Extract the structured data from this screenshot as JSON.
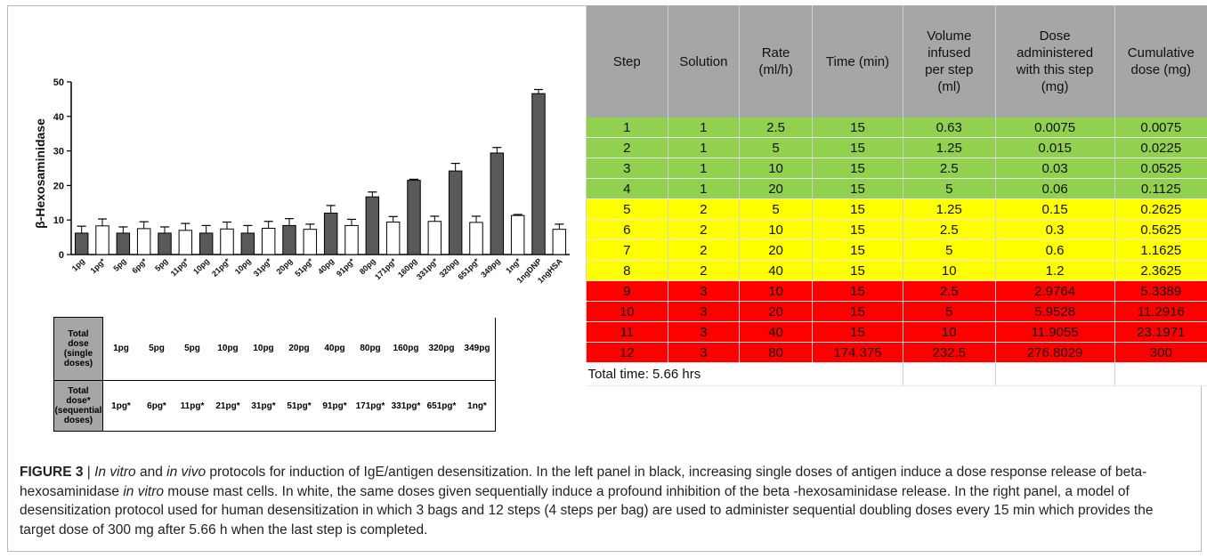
{
  "chart_data": {
    "type": "bar",
    "ylabel": "β-Hexosaminidase",
    "ylim": [
      0,
      50
    ],
    "yticks": [
      0,
      10,
      20,
      30,
      40,
      50
    ],
    "categories": [
      "1pg",
      "1pg*",
      "5pg",
      "6pg*",
      "5pg",
      "11pg*",
      "10pg",
      "21pg*",
      "10pg",
      "31pg*",
      "20pg",
      "51pg*",
      "40pg",
      "91pg*",
      "80pg",
      "171pg*",
      "160pg",
      "331pg*",
      "320pg",
      "651pg*",
      "349pg",
      "1ng*",
      "1ngDNP",
      "1ngHSA"
    ],
    "series": [
      {
        "values": [
          6.2,
          8.3,
          6.2,
          7.5,
          6.2,
          7.0,
          6.2,
          7.4,
          6.2,
          7.6,
          8.4,
          7.3,
          12.0,
          8.4,
          16.7,
          9.4,
          21.5,
          9.6,
          24.2,
          9.3,
          29.4,
          11.3,
          46.6,
          7.3
        ],
        "errors": [
          2.0,
          2.0,
          1.8,
          2.0,
          1.8,
          2.0,
          2.2,
          2.0,
          2.2,
          2.0,
          2.0,
          1.5,
          2.2,
          1.8,
          1.4,
          1.6,
          0.3,
          1.5,
          2.2,
          1.8,
          1.6,
          0.3,
          1.2,
          1.5
        ],
        "fills": [
          "dark",
          "white",
          "dark",
          "white",
          "dark",
          "white",
          "dark",
          "white",
          "dark",
          "white",
          "dark",
          "white",
          "dark",
          "white",
          "dark",
          "white",
          "dark",
          "white",
          "dark",
          "white",
          "dark",
          "white",
          "dark",
          "white"
        ]
      }
    ],
    "colors": {
      "dark": "#595959",
      "white": "#ffffff",
      "stroke": "#000000"
    }
  },
  "dose_table": {
    "row1_header": [
      "Total",
      "dose",
      "(single",
      "doses)"
    ],
    "row1_values": [
      "1pg",
      "5pg",
      "5pg",
      "10pg",
      "10pg",
      "20pg",
      "40pg",
      "80pg",
      "160pg",
      "320pg",
      "349pg"
    ],
    "row2_header": [
      "Total",
      "dose*",
      "(sequential",
      "doses)"
    ],
    "row2_values": [
      "1pg*",
      "6pg*",
      "11pg*",
      "21pg*",
      "31pg*",
      "51pg*",
      "91pg*",
      "171pg*",
      "331pg*",
      "651pg*",
      "1ng*"
    ]
  },
  "protocol_table": {
    "headers": [
      [
        "Step"
      ],
      [
        "Solution"
      ],
      [
        "Rate",
        "(ml/h)"
      ],
      [
        "Time (min)"
      ],
      [
        "Volume",
        "infused",
        "per step",
        "(ml)"
      ],
      [
        "Dose",
        "administered",
        "with this step",
        "(mg)"
      ],
      [
        "Cumulative",
        "dose (mg)"
      ]
    ],
    "rows": [
      {
        "color": "green",
        "cells": [
          "1",
          "1",
          "2.5",
          "15",
          "0.63",
          "0.0075",
          "0.0075"
        ]
      },
      {
        "color": "green",
        "cells": [
          "2",
          "1",
          "5",
          "15",
          "1.25",
          "0.015",
          "0.0225"
        ]
      },
      {
        "color": "green",
        "cells": [
          "3",
          "1",
          "10",
          "15",
          "2.5",
          "0.03",
          "0.0525"
        ]
      },
      {
        "color": "green",
        "cells": [
          "4",
          "1",
          "20",
          "15",
          "5",
          "0.06",
          "0.1125"
        ]
      },
      {
        "color": "yellow",
        "cells": [
          "5",
          "2",
          "5",
          "15",
          "1.25",
          "0.15",
          "0.2625"
        ]
      },
      {
        "color": "yellow",
        "cells": [
          "6",
          "2",
          "10",
          "15",
          "2.5",
          "0.3",
          "0.5625"
        ]
      },
      {
        "color": "yellow",
        "cells": [
          "7",
          "2",
          "20",
          "15",
          "5",
          "0.6",
          "1.1625"
        ]
      },
      {
        "color": "yellow",
        "cells": [
          "8",
          "2",
          "40",
          "15",
          "10",
          "1.2",
          "2.3625"
        ]
      },
      {
        "color": "red",
        "cells": [
          "9",
          "3",
          "10",
          "15",
          "2.5",
          "2.9764",
          "5.3389"
        ]
      },
      {
        "color": "red",
        "cells": [
          "10",
          "3",
          "20",
          "15",
          "5",
          "5.9528",
          "11.2916"
        ]
      },
      {
        "color": "red",
        "cells": [
          "11",
          "3",
          "40",
          "15",
          "10",
          "11.9055",
          "23.1971"
        ]
      },
      {
        "color": "red",
        "cells": [
          "12",
          "3",
          "80",
          "174.375",
          "232.5",
          "276.8029",
          "300"
        ]
      }
    ],
    "total_time": "Total time: 5.66 hrs",
    "row_colors": {
      "green": "#92d050",
      "yellow": "#ffff00",
      "red": "#ff0000",
      "header": "#a6a6a6"
    }
  },
  "caption": {
    "label": "FIGURE 3",
    "sep": " | ",
    "italic1": "In vitro",
    "t1": " and ",
    "italic2": "in vivo",
    "t2": " protocols for induction of IgE/antigen desensitization. In the left panel in black, increasing single doses of antigen induce a dose response release of beta-hexosaminidase ",
    "italic3": "in vitro",
    "t3": " mouse mast cells. In white, the same doses given sequentially induce a profound inhibition of the beta -hexosaminidase release. In the right panel, a model of desensitization protocol used for human desensitization in which 3 bags and 12 steps (4 steps per bag) are used to administer sequential doubling doses every 15 min which provides the target dose of 300 mg after 5.66 h when the last step is completed."
  }
}
